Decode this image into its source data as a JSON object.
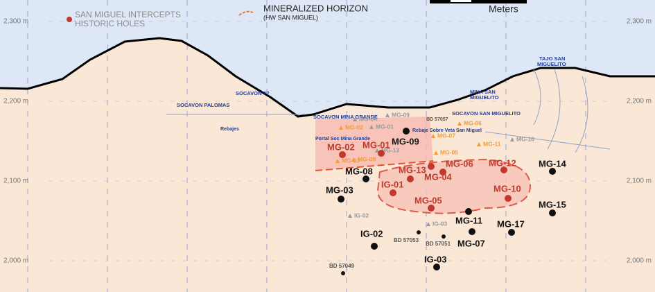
{
  "legend": {
    "intercepts": "SAN MIGUEL INTERCEPTS",
    "historic": "HISTORIC HOLES",
    "horizon": "MINERALIZED HORIZON",
    "horizon_sub": "(HW SAN MIGUEL)",
    "scale_unit": "Meters"
  },
  "elevations": [
    "2,300 m",
    "2,200 m",
    "2,100 m",
    "2,000 m"
  ],
  "workings": [
    "SOCAVON ??",
    "SOCAVON PALOMAS",
    "Rebajes",
    "SOCAVON MINA GRANDE",
    "MINA SAN",
    "MIGUELITO",
    "SOCAVON SAN MIGUELITO",
    "TAJO SAN",
    "MIGUELITO",
    "Rebaje Sobre Veta San Miguel",
    "Portal Soc Mina Grande",
    "BD 57057"
  ],
  "intercepts": [
    "MG-02",
    "MG-01",
    "MG-13",
    "IG-01",
    "MG-04",
    "MG-06",
    "MG-12",
    "MG-10",
    "MG-05"
  ],
  "historic": [
    "MG-09",
    "MG-08",
    "MG-03",
    "MG-14",
    "MG-15",
    "MG-11",
    "MG-17",
    "MG-07",
    "IG-02",
    "IG-03",
    "BD 57053",
    "BD 57051",
    "BD 57049"
  ],
  "previous_orange": [
    "MG-02",
    "MG-03",
    "MG-08",
    "MG-07",
    "MG-05",
    "MG-06",
    "MG-11"
  ],
  "previous_grey": [
    "MG-09",
    "MG-01",
    "MG-04",
    "MG-13",
    "MG-10",
    "IG-02",
    "IG-03"
  ]
}
